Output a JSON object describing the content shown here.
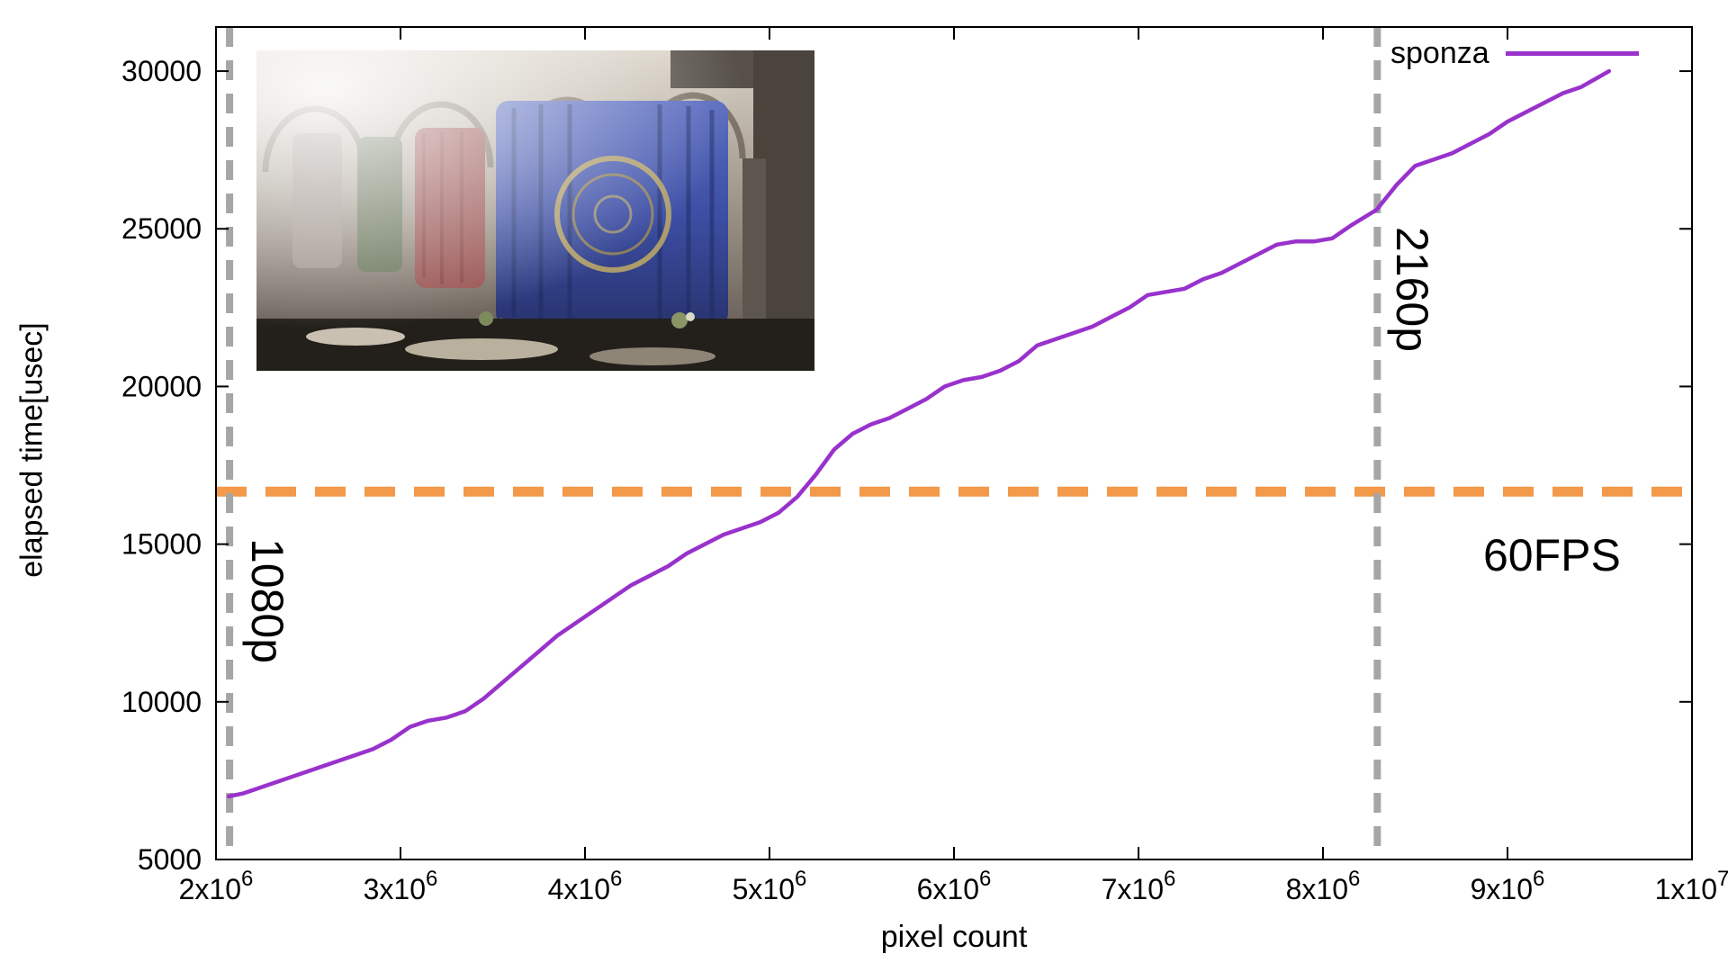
{
  "chart_data": {
    "type": "line",
    "title": "",
    "xlabel": "pixel count",
    "ylabel": "elapsed time[usec]",
    "xlim": [
      2000000,
      10000000
    ],
    "ylim": [
      5000,
      31400
    ],
    "grid": false,
    "legend_position": "top-right",
    "x_scale": 1000000,
    "xticks": [
      {
        "v": 2000000,
        "base": "2x10",
        "sup": "6"
      },
      {
        "v": 3000000,
        "base": "3x10",
        "sup": "6"
      },
      {
        "v": 4000000,
        "base": "4x10",
        "sup": "6"
      },
      {
        "v": 5000000,
        "base": "5x10",
        "sup": "6"
      },
      {
        "v": 6000000,
        "base": "6x10",
        "sup": "6"
      },
      {
        "v": 7000000,
        "base": "7x10",
        "sup": "6"
      },
      {
        "v": 8000000,
        "base": "8x10",
        "sup": "6"
      },
      {
        "v": 9000000,
        "base": "9x10",
        "sup": "6"
      },
      {
        "v": 10000000,
        "base": "1x10",
        "sup": "7"
      }
    ],
    "yticks": [
      {
        "v": 5000,
        "label": "5000"
      },
      {
        "v": 10000,
        "label": "10000"
      },
      {
        "v": 15000,
        "label": "15000"
      },
      {
        "v": 20000,
        "label": "20000"
      },
      {
        "v": 25000,
        "label": "25000"
      },
      {
        "v": 30000,
        "label": "30000"
      }
    ],
    "series": [
      {
        "name": "sponza",
        "color": "#9932cc",
        "points": [
          [
            2.07,
            7000
          ],
          [
            2.15,
            7100
          ],
          [
            2.25,
            7300
          ],
          [
            2.35,
            7500
          ],
          [
            2.45,
            7700
          ],
          [
            2.55,
            7900
          ],
          [
            2.65,
            8100
          ],
          [
            2.75,
            8300
          ],
          [
            2.85,
            8500
          ],
          [
            2.95,
            8800
          ],
          [
            3.05,
            9200
          ],
          [
            3.15,
            9400
          ],
          [
            3.25,
            9500
          ],
          [
            3.35,
            9700
          ],
          [
            3.45,
            10100
          ],
          [
            3.55,
            10600
          ],
          [
            3.65,
            11100
          ],
          [
            3.75,
            11600
          ],
          [
            3.85,
            12100
          ],
          [
            3.95,
            12500
          ],
          [
            4.05,
            12900
          ],
          [
            4.15,
            13300
          ],
          [
            4.25,
            13700
          ],
          [
            4.35,
            14000
          ],
          [
            4.45,
            14300
          ],
          [
            4.55,
            14700
          ],
          [
            4.65,
            15000
          ],
          [
            4.75,
            15300
          ],
          [
            4.85,
            15500
          ],
          [
            4.95,
            15700
          ],
          [
            5.05,
            16000
          ],
          [
            5.15,
            16500
          ],
          [
            5.25,
            17200
          ],
          [
            5.35,
            18000
          ],
          [
            5.45,
            18500
          ],
          [
            5.55,
            18800
          ],
          [
            5.65,
            19000
          ],
          [
            5.75,
            19300
          ],
          [
            5.85,
            19600
          ],
          [
            5.95,
            20000
          ],
          [
            6.05,
            20200
          ],
          [
            6.15,
            20300
          ],
          [
            6.25,
            20500
          ],
          [
            6.35,
            20800
          ],
          [
            6.45,
            21300
          ],
          [
            6.55,
            21500
          ],
          [
            6.65,
            21700
          ],
          [
            6.75,
            21900
          ],
          [
            6.85,
            22200
          ],
          [
            6.95,
            22500
          ],
          [
            7.05,
            22900
          ],
          [
            7.15,
            23000
          ],
          [
            7.25,
            23100
          ],
          [
            7.35,
            23400
          ],
          [
            7.45,
            23600
          ],
          [
            7.55,
            23900
          ],
          [
            7.65,
            24200
          ],
          [
            7.75,
            24500
          ],
          [
            7.85,
            24600
          ],
          [
            7.95,
            24600
          ],
          [
            8.05,
            24700
          ],
          [
            8.15,
            25100
          ],
          [
            8.29,
            25600
          ],
          [
            8.4,
            26400
          ],
          [
            8.5,
            27000
          ],
          [
            8.6,
            27200
          ],
          [
            8.7,
            27400
          ],
          [
            8.8,
            27700
          ],
          [
            8.9,
            28000
          ],
          [
            9.0,
            28400
          ],
          [
            9.1,
            28700
          ],
          [
            9.2,
            29000
          ],
          [
            9.3,
            29300
          ],
          [
            9.4,
            29500
          ],
          [
            9.55,
            30000
          ]
        ]
      }
    ],
    "markers": {
      "vline_color": "#a6a6a6",
      "hline_color": "#f2994a",
      "vlines": [
        {
          "x": 2073600,
          "label": "1080p"
        },
        {
          "x": 8294400,
          "label": "2160p"
        }
      ],
      "hlines": [
        {
          "y": 16666,
          "label": "60FPS"
        }
      ]
    }
  }
}
